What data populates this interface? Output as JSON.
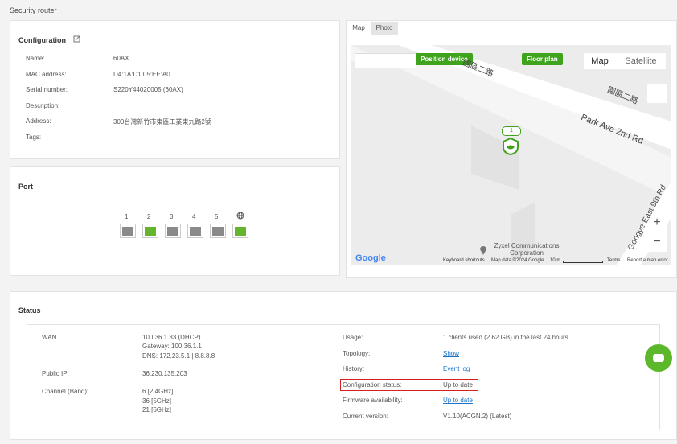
{
  "header": {
    "title": "Security router"
  },
  "configuration": {
    "title": "Configuration",
    "fields": [
      {
        "label": "Name:",
        "value": "60AX"
      },
      {
        "label": "MAC address:",
        "value": "D4:1A:D1:05:EE:A0"
      },
      {
        "label": "Serial number:",
        "value": "S220Y44020005 (60AX)"
      },
      {
        "label": "Description:"
      },
      {
        "label": "Address:",
        "value": "300台灣新竹市東區工業東九路2號"
      },
      {
        "label": "Tags:"
      }
    ]
  },
  "port": {
    "title": "Port",
    "ports": [
      "1",
      "2",
      "3",
      "4",
      "5"
    ]
  },
  "map": {
    "tabs": [
      "Map",
      "Photo"
    ],
    "position_device": "Position device",
    "floor_plan": "Floor plan",
    "map_button": "Map",
    "satellite_button": "Satellite",
    "streets": [
      "園區二路",
      "園區二路",
      "Park Ave 2nd Rd",
      "Gongye East 9th Rd"
    ],
    "place": "Zyxel Communications Corporation",
    "marker": "1",
    "google": "Google",
    "shortcuts": "Keyboard shortcuts",
    "map_data": "Map data ©2024 Google",
    "scale": "10 m",
    "terms": "Terms",
    "report": "Report a map error"
  },
  "status": {
    "title": "Status",
    "left": [
      {
        "label": "WAN",
        "lines": [
          "100.36.1.33  (DHCP)",
          "Gateway:  100.36.1.1",
          "DNS:  172.23.5.1 | 8.8.8.8"
        ]
      },
      {
        "label": "Public IP:",
        "lines": [
          "36.230.135.203"
        ]
      },
      {
        "label": "Channel (Band):",
        "lines": [
          "6 [2.4GHz]",
          "36 [5GHz]",
          "21 [6GHz]"
        ]
      }
    ],
    "right": [
      {
        "label": "Usage:",
        "value": "1 clients used (2.62 GB) in the last 24 hours"
      },
      {
        "label": "Topology:",
        "value": "Show",
        "link": true
      },
      {
        "label": "History:",
        "value": "Event log",
        "link": true
      },
      {
        "label": "Configuration status:",
        "value": "Up to date",
        "highlight": true
      },
      {
        "label": "Firmware availability:",
        "value": "Up to date",
        "link": true
      },
      {
        "label": "Current version:",
        "value": "V1.10(ACGN.2) (Latest)"
      }
    ]
  }
}
